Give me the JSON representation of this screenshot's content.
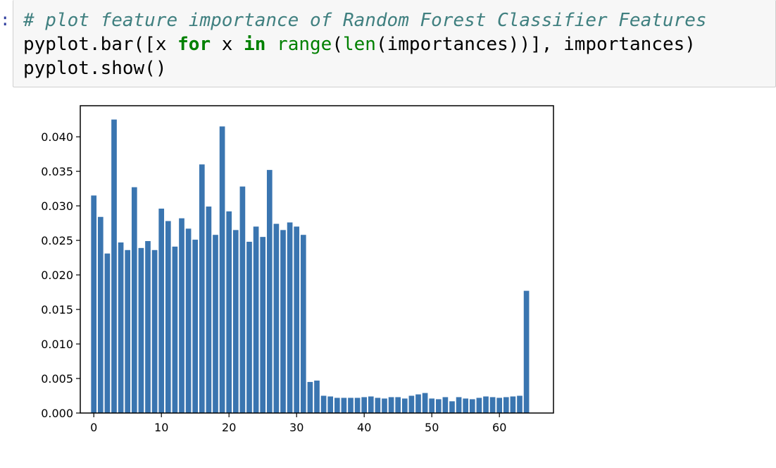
{
  "cell": {
    "prompt": ":",
    "lines": [
      [
        {
          "t": "# plot feature importance of Random Forest Classifier Features",
          "c": "cm"
        }
      ],
      [
        {
          "t": "pyplot.bar([x ",
          "c": ""
        },
        {
          "t": "for",
          "c": "kw"
        },
        {
          "t": " x ",
          "c": ""
        },
        {
          "t": "in",
          "c": "kw"
        },
        {
          "t": " ",
          "c": ""
        },
        {
          "t": "range",
          "c": "bi"
        },
        {
          "t": "(",
          "c": ""
        },
        {
          "t": "len",
          "c": "bi"
        },
        {
          "t": "(importances))], importances)",
          "c": ""
        }
      ],
      [
        {
          "t": "pyplot.show()",
          "c": ""
        }
      ]
    ]
  },
  "chart_data": {
    "type": "bar",
    "title": "",
    "xlabel": "",
    "ylabel": "",
    "bar_color": "#3a75b0",
    "xlim": [
      -2,
      68
    ],
    "ylim": [
      0,
      0.0445
    ],
    "xticks": [
      0,
      10,
      20,
      30,
      40,
      50,
      60
    ],
    "yticks": [
      0.0,
      0.005,
      0.01,
      0.015,
      0.02,
      0.025,
      0.03,
      0.035,
      0.04
    ],
    "ytick_labels": [
      "0.000",
      "0.005",
      "0.010",
      "0.015",
      "0.020",
      "0.025",
      "0.030",
      "0.035",
      "0.040"
    ],
    "x": [
      0,
      1,
      2,
      3,
      4,
      5,
      6,
      7,
      8,
      9,
      10,
      11,
      12,
      13,
      14,
      15,
      16,
      17,
      18,
      19,
      20,
      21,
      22,
      23,
      24,
      25,
      26,
      27,
      28,
      29,
      30,
      31,
      32,
      33,
      34,
      35,
      36,
      37,
      38,
      39,
      40,
      41,
      42,
      43,
      44,
      45,
      46,
      47,
      48,
      49,
      50,
      51,
      52,
      53,
      54,
      55,
      56,
      57,
      58,
      59,
      60,
      61,
      62,
      63,
      64
    ],
    "values": [
      0.0315,
      0.0284,
      0.0231,
      0.0425,
      0.0247,
      0.0236,
      0.0327,
      0.0239,
      0.0249,
      0.0236,
      0.0296,
      0.0278,
      0.0241,
      0.0282,
      0.0267,
      0.0251,
      0.036,
      0.0299,
      0.0258,
      0.0415,
      0.0292,
      0.0265,
      0.0328,
      0.0248,
      0.027,
      0.0255,
      0.0352,
      0.0274,
      0.0265,
      0.0276,
      0.027,
      0.0258,
      0.0045,
      0.0047,
      0.0025,
      0.0024,
      0.0022,
      0.0022,
      0.0022,
      0.0022,
      0.0023,
      0.0024,
      0.0022,
      0.0021,
      0.0023,
      0.0023,
      0.0021,
      0.0025,
      0.0027,
      0.0029,
      0.0021,
      0.002,
      0.0023,
      0.0017,
      0.0023,
      0.0021,
      0.002,
      0.0022,
      0.0024,
      0.0023,
      0.0022,
      0.0023,
      0.0024,
      0.0025,
      0.0177
    ]
  }
}
